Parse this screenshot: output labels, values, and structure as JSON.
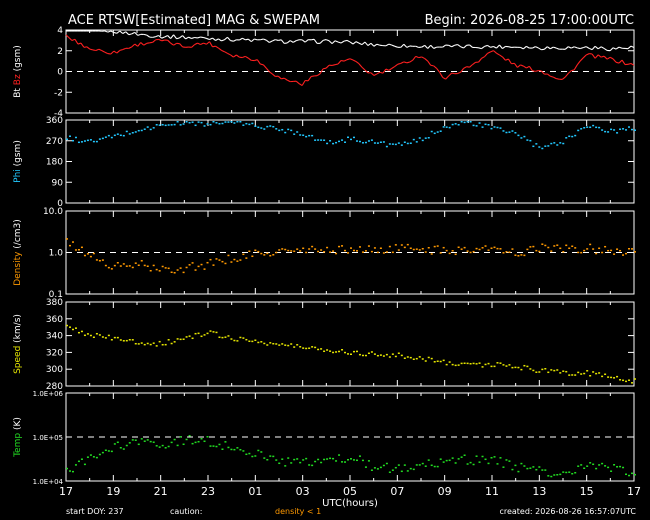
{
  "header": {
    "title": "ACE RTSW[Estimated] MAG & SWEPAM",
    "begin": "Begin: 2026-08-25 17:00:00UTC"
  },
  "footer": {
    "start_doy": "start DOY: 237",
    "caution": "caution:",
    "density_note": "density < 1",
    "created": "created: 2026-08-26 16:57:07UTC"
  },
  "colors": {
    "background": "#000000",
    "frame": "#ffffff",
    "bt": "#ffffff",
    "bz": "#ff2020",
    "phi": "#22c8ff",
    "density": "#ff9900",
    "speed": "#e6e600",
    "temp": "#22dd22"
  },
  "chart_data": [
    {
      "type": "line",
      "panel": "mag",
      "ylabel_parts": [
        "Bt",
        "Bz",
        "(gsm)"
      ],
      "ylim": [
        -4,
        4
      ],
      "yticks": [
        "4",
        "2",
        "0",
        "-2",
        "-4"
      ],
      "reference_line": 0,
      "grid": false,
      "x": [
        "17",
        "18",
        "19",
        "20",
        "21",
        "22",
        "23",
        "00",
        "01",
        "02",
        "03",
        "04",
        "05",
        "06",
        "07",
        "08",
        "09",
        "10",
        "11",
        "12",
        "13",
        "14",
        "15",
        "16",
        "17"
      ],
      "series": [
        {
          "name": "Bt",
          "values": [
            4.2,
            4.1,
            3.9,
            3.6,
            3.4,
            3.3,
            3.2,
            3.1,
            3.0,
            2.9,
            2.9,
            2.9,
            2.8,
            2.6,
            2.5,
            2.4,
            2.4,
            2.4,
            2.4,
            2.4,
            2.3,
            2.3,
            2.3,
            2.2,
            2.3
          ]
        },
        {
          "name": "Bz",
          "values": [
            3.4,
            2.2,
            1.8,
            2.6,
            3.0,
            2.4,
            2.8,
            1.6,
            1.2,
            -0.6,
            -1.2,
            0.4,
            1.2,
            -0.4,
            0.5,
            1.6,
            -0.6,
            0.4,
            2.0,
            0.6,
            0.1,
            -0.8,
            1.6,
            1.2,
            0.6
          ]
        }
      ]
    },
    {
      "type": "scatter",
      "panel": "phi",
      "ylabel_parts": [
        "Phi",
        "(gsm)"
      ],
      "ylim": [
        0,
        360
      ],
      "yticks": [
        "360",
        "270",
        "180",
        "90",
        "0"
      ],
      "grid": false,
      "x": [
        "17",
        "18",
        "19",
        "20",
        "21",
        "22",
        "23",
        "00",
        "01",
        "02",
        "03",
        "04",
        "05",
        "06",
        "07",
        "08",
        "09",
        "10",
        "11",
        "12",
        "13",
        "14",
        "15",
        "16",
        "17"
      ],
      "series": [
        {
          "name": "Phi",
          "values": [
            285,
            268,
            292,
            318,
            340,
            352,
            345,
            355,
            338,
            322,
            305,
            262,
            282,
            266,
            252,
            278,
            338,
            352,
            328,
            305,
            238,
            272,
            342,
            312,
            328
          ]
        }
      ]
    },
    {
      "type": "scatter",
      "panel": "density",
      "ylabel_parts": [
        "Density",
        "(/cm3)"
      ],
      "ylim": [
        0.1,
        10
      ],
      "scale": "log",
      "yticks": [
        "10.0",
        "1.0",
        "0.1"
      ],
      "reference_line": 1,
      "grid": false,
      "x": [
        "17",
        "18",
        "19",
        "20",
        "21",
        "22",
        "23",
        "00",
        "01",
        "02",
        "03",
        "04",
        "05",
        "06",
        "07",
        "08",
        "09",
        "10",
        "11",
        "12",
        "13",
        "14",
        "15",
        "16",
        "17"
      ],
      "series": [
        {
          "name": "Density",
          "values": [
            1.8,
            0.9,
            0.45,
            0.55,
            0.38,
            0.45,
            0.55,
            0.75,
            0.95,
            1.1,
            1.15,
            1.2,
            1.25,
            1.2,
            1.3,
            1.3,
            1.1,
            1.3,
            1.25,
            1.0,
            1.4,
            1.25,
            1.3,
            1.2,
            1.1
          ]
        }
      ]
    },
    {
      "type": "scatter",
      "panel": "speed",
      "ylabel_parts": [
        "Speed",
        "(km/s)"
      ],
      "ylim": [
        280,
        380
      ],
      "yticks": [
        "380",
        "360",
        "340",
        "320",
        "300",
        "280"
      ],
      "grid": false,
      "x": [
        "17",
        "18",
        "19",
        "20",
        "21",
        "22",
        "23",
        "00",
        "01",
        "02",
        "03",
        "04",
        "05",
        "06",
        "07",
        "08",
        "09",
        "10",
        "11",
        "12",
        "13",
        "14",
        "15",
        "16",
        "17"
      ],
      "series": [
        {
          "name": "Speed",
          "values": [
            350,
            342,
            337,
            333,
            331,
            338,
            344,
            338,
            334,
            330,
            327,
            324,
            321,
            319,
            317,
            314,
            309,
            307,
            306,
            304,
            299,
            297,
            296,
            292,
            287
          ]
        }
      ]
    },
    {
      "type": "scatter",
      "panel": "temp",
      "ylabel_parts": [
        "Temp",
        "(K)"
      ],
      "ylim": [
        10000,
        1000000
      ],
      "scale": "log",
      "yticks": [
        "1.0E+06",
        "1.0E+05",
        "1.0E+04"
      ],
      "reference_line": 100000,
      "grid": false,
      "x": [
        "17",
        "18",
        "19",
        "20",
        "21",
        "22",
        "23",
        "00",
        "01",
        "02",
        "03",
        "04",
        "05",
        "06",
        "07",
        "08",
        "09",
        "10",
        "11",
        "12",
        "13",
        "14",
        "15",
        "16",
        "17"
      ],
      "series": [
        {
          "name": "Temp",
          "values": [
            18000,
            32000,
            60000,
            75000,
            70000,
            90000,
            85000,
            60000,
            45000,
            30000,
            26000,
            28000,
            38000,
            22000,
            20000,
            24000,
            28000,
            32000,
            30000,
            22000,
            17000,
            16000,
            23000,
            20000,
            15000
          ]
        }
      ]
    }
  ],
  "x_axis": {
    "label": "UTC(hours)",
    "ticks": [
      "17",
      "19",
      "21",
      "23",
      "01",
      "03",
      "05",
      "07",
      "09",
      "11",
      "13",
      "15",
      "17"
    ]
  }
}
